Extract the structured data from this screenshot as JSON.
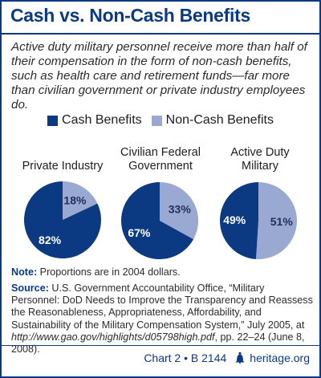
{
  "title": "Cash vs. Non-Cash Benefits",
  "subtitle": "Active duty military personnel receive more than half of their compensation in the form of non-cash benefits, such as health care and retirement funds—far more than civilian government or private industry employees do.",
  "colors": {
    "cash": "#0b3a82",
    "non_cash": "#9aa9d1",
    "accent": "#0b3a82"
  },
  "chart_data": {
    "type": "pie",
    "legend": [
      "Cash Benefits",
      "Non-Cash Benefits"
    ],
    "pies": [
      {
        "label_line1": "Private Industry",
        "label_line2": "",
        "cash": 82,
        "non_cash": 18,
        "cash_label": "82%",
        "non_cash_label": "18%"
      },
      {
        "label_line1": "Civilian Federal",
        "label_line2": "Government",
        "cash": 67,
        "non_cash": 33,
        "cash_label": "67%",
        "non_cash_label": "33%"
      },
      {
        "label_line1": "Active Duty",
        "label_line2": "Military",
        "cash": 49,
        "non_cash": 51,
        "cash_label": "49%",
        "non_cash_label": "51%"
      }
    ]
  },
  "note": {
    "label": "Note:",
    "text": " Proportions are in 2004 dollars."
  },
  "source": {
    "label": "Source:",
    "text": " U.S. Government Accountability Office, “Military Personnel: DoD Needs to Improve the Transparency and Reassess the Reasonableness, Appropriateness, Affordability, and Sustainability of the Military Compensation System,” July 2005, at ",
    "url": "http://www.gao.gov/highlights/d05798high.pdf",
    "tail": ", pp. 22–24 (June 8, 2008)."
  },
  "footer": {
    "chart": "Chart 2 • B 2144",
    "site": "heritage.org",
    "bell_icon": "liberty-bell-icon"
  }
}
